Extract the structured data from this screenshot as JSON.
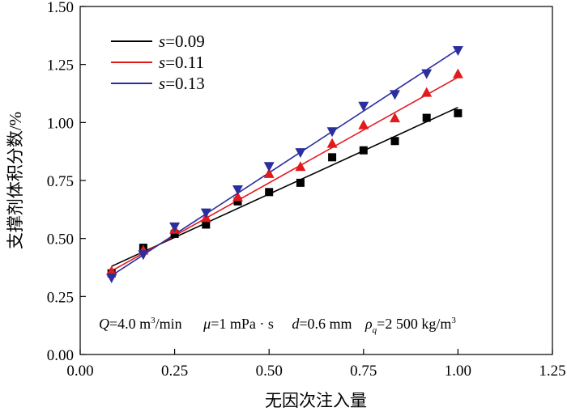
{
  "chart_data": {
    "type": "scatter",
    "xlabel": "无因次注入量",
    "ylabel": "支撑剂体积分数/%",
    "xlim": [
      0,
      1.25
    ],
    "ylim": [
      0,
      1.5
    ],
    "xticks": [
      "0.00",
      "0.25",
      "0.50",
      "0.75",
      "1.00",
      "1.25"
    ],
    "yticks": [
      "0.00",
      "0.25",
      "0.50",
      "0.75",
      "1.00",
      "1.25",
      "1.50"
    ],
    "grid": false,
    "legend_position": "top-left",
    "series": [
      {
        "name": "s=0.09",
        "symbol": "s",
        "value_label": "=0.09",
        "color": "#000000",
        "marker": "square",
        "x": [
          0.083,
          0.167,
          0.25,
          0.333,
          0.417,
          0.5,
          0.583,
          0.667,
          0.75,
          0.833,
          0.917,
          1.0
        ],
        "y": [
          0.35,
          0.46,
          0.52,
          0.56,
          0.66,
          0.7,
          0.74,
          0.85,
          0.88,
          0.92,
          1.02,
          1.04
        ],
        "fit": [
          [
            0.083,
            0.38
          ],
          [
            1.0,
            1.065
          ]
        ]
      },
      {
        "name": "s=0.11",
        "symbol": "s",
        "value_label": "=0.11",
        "color": "#e31a1c",
        "marker": "triangle-up",
        "x": [
          0.083,
          0.167,
          0.25,
          0.333,
          0.417,
          0.5,
          0.583,
          0.667,
          0.75,
          0.833,
          0.917,
          1.0
        ],
        "y": [
          0.36,
          0.45,
          0.54,
          0.59,
          0.68,
          0.78,
          0.81,
          0.91,
          0.99,
          1.02,
          1.13,
          1.21
        ],
        "fit": [
          [
            0.083,
            0.36
          ],
          [
            1.0,
            1.195
          ]
        ]
      },
      {
        "name": "s=0.13",
        "symbol": "s",
        "value_label": "=0.13",
        "color": "#2b2f9e",
        "marker": "triangle-down",
        "x": [
          0.083,
          0.167,
          0.25,
          0.333,
          0.417,
          0.5,
          0.583,
          0.667,
          0.75,
          0.833,
          0.917,
          1.0
        ],
        "y": [
          0.33,
          0.43,
          0.55,
          0.61,
          0.71,
          0.81,
          0.87,
          0.96,
          1.07,
          1.12,
          1.21,
          1.31
        ],
        "fit": [
          [
            0.083,
            0.34
          ],
          [
            1.0,
            1.315
          ]
        ]
      }
    ],
    "annotation": {
      "q_symbol": "Q",
      "q_value": "=4.0 m",
      "q_exp": "3",
      "q_unit": "/min",
      "mu_symbol": "μ",
      "mu_value": "=1 mPa · s",
      "d_symbol": "d",
      "d_value": "=0.6 mm",
      "rho_symbol": "ρ",
      "rho_sub": "q",
      "rho_value": "=2 500 kg/m",
      "rho_exp": "3"
    }
  }
}
